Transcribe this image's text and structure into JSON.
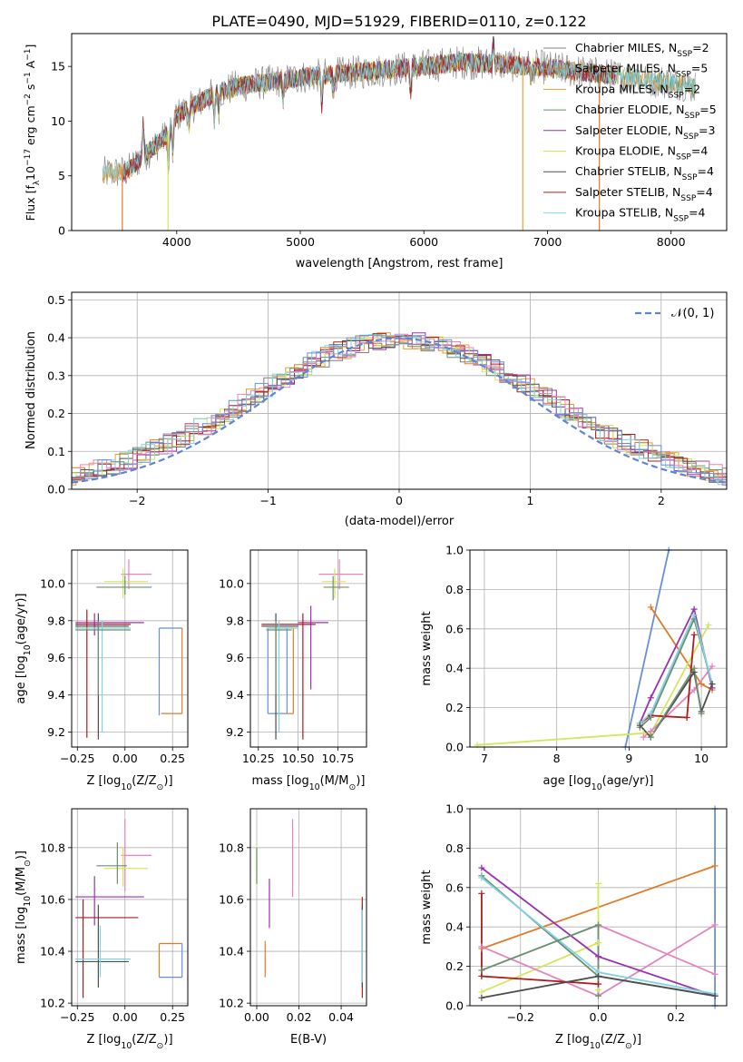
{
  "figure_title": "PLATE=0490, MJD=51929, FIBERID=0110, z=0.122",
  "colors": {
    "chabrier_miles": "#7f7f7f",
    "salpeter_miles": "#e07b2a",
    "kroupa_miles": "#e3a13a",
    "chabrier_elodie": "#6b8f71",
    "salpeter_elodie": "#9b30b0",
    "kroupa_elodie": "#d4e65a",
    "chabrier_stelib": "#4d4d4d",
    "salpeter_stelib": "#b01c1c",
    "kroupa_stelib": "#80d4e0",
    "normal": "#5b86d6",
    "extra_blue": "#6a8fd8",
    "extra_pink": "#e584c0",
    "grid": "#b0b0b0"
  },
  "chart_data": [
    {
      "id": "spectrum",
      "type": "line",
      "title": "PLATE=0490, MJD=51929, FIBERID=0110, z=0.122",
      "xlabel": "wavelength [Angstrom, rest frame]",
      "ylabel": "Flux [f",
      "ylabel_sub": "λ",
      "ylabel_rest": "10",
      "ylabel_exp": "−17",
      "ylabel_tail": " erg cm",
      "xlim": [
        3150,
        8450
      ],
      "ylim": [
        0,
        18
      ],
      "xticks": [
        4000,
        5000,
        6000,
        7000,
        8000
      ],
      "yticks": [
        0,
        5,
        10,
        15
      ],
      "grid": false,
      "legend_position": "right",
      "continuum": {
        "x": [
          3400,
          3600,
          3700,
          3800,
          3900,
          4000,
          4100,
          4200,
          4300,
          4500,
          4700,
          5000,
          5300,
          5600,
          6000,
          6300,
          6600,
          6900,
          7200,
          7500,
          7800,
          8100,
          8200
        ],
        "y": [
          5.2,
          5.4,
          6.5,
          7.5,
          8.5,
          10.5,
          11.2,
          11.8,
          12.5,
          13.2,
          13.5,
          14.0,
          14.3,
          14.6,
          15.0,
          15.4,
          15.2,
          15.0,
          14.6,
          14.2,
          13.8,
          13.4,
          13.1
        ]
      },
      "series": [
        {
          "label": "Chabrier MILES",
          "nssp": "2",
          "color": "#7f7f7f"
        },
        {
          "label": "Salpeter MILES",
          "nssp": "5",
          "color": "#e07b2a"
        },
        {
          "label": "Kroupa MILES",
          "nssp": "2",
          "color": "#e3a13a"
        },
        {
          "label": "Chabrier ELODIE",
          "nssp": "5",
          "color": "#6b8f71"
        },
        {
          "label": "Salpeter ELODIE",
          "nssp": "3",
          "color": "#9b30b0"
        },
        {
          "label": "Kroupa ELODIE",
          "nssp": "4",
          "color": "#d4e65a"
        },
        {
          "label": "Chabrier STELIB",
          "nssp": "4",
          "color": "#4d4d4d"
        },
        {
          "label": "Salpeter STELIB",
          "nssp": "4",
          "color": "#b01c1c"
        },
        {
          "label": "Kroupa STELIB",
          "nssp": "4",
          "color": "#80d4e0"
        }
      ],
      "legend_nssp_prefix": "N",
      "legend_nssp_sub": "SSP",
      "dropouts": [
        {
          "x": 3560,
          "color": "#e07b2a"
        },
        {
          "x": 3930,
          "color": "#d4e65a"
        },
        {
          "x": 6800,
          "color": "#e3a13a"
        },
        {
          "x": 7420,
          "color": "#e07b2a"
        }
      ]
    },
    {
      "id": "residuals",
      "type": "histogram",
      "xlabel": "(data-model)/error",
      "ylabel": "Normed distribution",
      "xlim": [
        -2.5,
        2.5
      ],
      "ylim": [
        0,
        0.52
      ],
      "xticks": [
        -2,
        -1,
        0,
        1,
        2
      ],
      "xticklabels": [
        "−2",
        "−1",
        "0",
        "1",
        "2"
      ],
      "yticks": [
        0.0,
        0.1,
        0.2,
        0.3,
        0.4,
        0.5
      ],
      "yticklabels": [
        "0.0",
        "0.1",
        "0.2",
        "0.3",
        "0.4",
        "0.5"
      ],
      "grid": true,
      "bin_width": 0.1,
      "normal_label": "𝒩(0, 1)",
      "legend_position": "top-right"
    },
    {
      "id": "age_vs_Z",
      "type": "scatter",
      "xlabel": "Z [log",
      "xlabel_sub": "10",
      "xlabel_rest": "(Z/Z",
      "xlabel_sun": "⊙",
      "xlabel_end": ")]",
      "ylabel": "age  [log",
      "ylabel_sub": "10",
      "ylabel_rest": "(age/yr)]",
      "xlim": [
        -0.28,
        0.33
      ],
      "ylim": [
        9.12,
        10.18
      ],
      "xticks": [
        -0.25,
        0.0,
        0.25
      ],
      "xticklabels": [
        "−0.25",
        "0.00",
        "0.25"
      ],
      "yticks": [
        9.2,
        9.4,
        9.6,
        9.8,
        10.0
      ],
      "yticklabels": [
        "9.2",
        "9.4",
        "9.6",
        "9.8",
        "10.0"
      ],
      "errorbars": [
        {
          "x": 0.02,
          "y": 10.05,
          "xlo": -0.02,
          "xhi": 0.14,
          "ylo": 9.97,
          "yhi": 10.13,
          "color": "#e584c0"
        },
        {
          "x": -0.01,
          "y": 10.01,
          "xlo": -0.11,
          "xhi": 0.12,
          "ylo": 9.92,
          "yhi": 10.08,
          "color": "#d4e65a"
        },
        {
          "x": 0.0,
          "y": 9.98,
          "xlo": -0.15,
          "xhi": 0.14,
          "ylo": 9.94,
          "yhi": 10.04,
          "color": "#6b8f71"
        },
        {
          "x": -0.16,
          "y": 9.79,
          "xlo": -0.26,
          "xhi": 0.1,
          "ylo": 9.72,
          "yhi": 9.84,
          "color": "#9b30b0"
        },
        {
          "x": -0.2,
          "y": 9.78,
          "xlo": -0.26,
          "xhi": 0.03,
          "ylo": 9.17,
          "yhi": 9.86,
          "color": "#b01c1c"
        },
        {
          "x": -0.14,
          "y": 9.77,
          "xlo": -0.26,
          "xhi": 0.02,
          "ylo": 9.16,
          "yhi": 9.84,
          "color": "#4d4d4d"
        },
        {
          "x": -0.12,
          "y": 9.76,
          "xlo": -0.26,
          "xhi": 0.03,
          "ylo": 9.2,
          "yhi": 9.8,
          "color": "#80d4e0"
        },
        {
          "x": -0.14,
          "y": 9.75,
          "xlo": -0.26,
          "xhi": 0.03,
          "ylo": 9.4,
          "yhi": 9.8,
          "color": "#6b8f71"
        }
      ],
      "boxes": [
        {
          "x0": 0.19,
          "x1": 0.3,
          "y0": 9.3,
          "y1": 9.76,
          "color": "#e07b2a",
          "open": "left-top"
        },
        {
          "x0": 0.18,
          "x1": 0.3,
          "y0": 9.29,
          "y1": 9.76,
          "color": "#6a8fd8",
          "open": "bottom-right"
        }
      ]
    },
    {
      "id": "age_vs_mass",
      "type": "scatter",
      "xlabel": "mass [log",
      "xlabel_sub": "10",
      "xlabel_rest": "(M/M",
      "xlabel_sun": "⊙",
      "xlabel_end": ")]",
      "xlim": [
        10.2,
        10.93
      ],
      "ylim": [
        9.12,
        10.18
      ],
      "xticks": [
        10.25,
        10.5,
        10.75
      ],
      "xticklabels": [
        "10.25",
        "10.50",
        "10.75"
      ],
      "yticks": [
        9.2,
        9.4,
        9.6,
        9.8,
        10.0
      ],
      "yticklabels": [
        "9.2",
        "9.4",
        "9.6",
        "9.8",
        "10.0"
      ],
      "errorbars": [
        {
          "x": 10.76,
          "y": 10.05,
          "xlo": 10.63,
          "xhi": 10.91,
          "ylo": 9.97,
          "yhi": 10.13,
          "color": "#e584c0"
        },
        {
          "x": 10.73,
          "y": 10.01,
          "xlo": 10.65,
          "xhi": 10.8,
          "ylo": 9.92,
          "yhi": 10.08,
          "color": "#d4e65a"
        },
        {
          "x": 10.72,
          "y": 9.98,
          "xlo": 10.66,
          "xhi": 10.82,
          "ylo": 9.91,
          "yhi": 10.04,
          "color": "#6b8f71"
        },
        {
          "x": 10.58,
          "y": 9.79,
          "xlo": 10.5,
          "xhi": 10.69,
          "ylo": 9.43,
          "yhi": 9.88,
          "color": "#9b30b0"
        },
        {
          "x": 10.53,
          "y": 9.78,
          "xlo": 10.27,
          "xhi": 10.61,
          "ylo": 9.16,
          "yhi": 9.84,
          "color": "#b01c1c"
        },
        {
          "x": 10.36,
          "y": 9.77,
          "xlo": 10.27,
          "xhi": 10.5,
          "ylo": 9.16,
          "yhi": 9.84,
          "color": "#4d4d4d"
        },
        {
          "x": 10.38,
          "y": 9.76,
          "xlo": 10.3,
          "xhi": 10.5,
          "ylo": 9.2,
          "yhi": 9.8,
          "color": "#80d4e0"
        },
        {
          "x": 10.36,
          "y": 9.75,
          "xlo": 10.3,
          "xhi": 10.46,
          "ylo": 9.4,
          "yhi": 9.8,
          "color": "#6b8f71"
        }
      ],
      "boxes": [
        {
          "x0": 10.31,
          "x1": 10.43,
          "y0": 9.3,
          "y1": 9.76,
          "color": "#6a8fd8",
          "open": "none"
        },
        {
          "x0": 10.43,
          "x1": 10.47,
          "y0": 9.3,
          "y1": 9.76,
          "color": "#e07b2a",
          "open": "left"
        }
      ]
    },
    {
      "id": "weight_vs_age",
      "type": "line",
      "xlabel": "age  [log",
      "xlabel_sub": "10",
      "xlabel_rest": "(age/yr)]",
      "ylabel": "mass weight",
      "xlim": [
        6.8,
        10.35
      ],
      "ylim": [
        0,
        1.0
      ],
      "xticks": [
        7,
        8,
        9,
        10
      ],
      "yticks": [
        0.0,
        0.2,
        0.4,
        0.6,
        0.8,
        1.0
      ],
      "yticklabels": [
        "0.0",
        "0.2",
        "0.4",
        "0.6",
        "0.8",
        "1.0"
      ],
      "grid": true,
      "series": [
        {
          "color": "#6a8fd8",
          "x": [
            8.95,
            9.55
          ],
          "y": [
            0.0,
            1.0
          ]
        },
        {
          "color": "#e07b2a",
          "x": [
            9.3,
            10.0,
            10.15
          ],
          "y": [
            0.71,
            0.32,
            0.29
          ]
        },
        {
          "color": "#d4e65a",
          "x": [
            6.9,
            9.2,
            9.3,
            10.1
          ],
          "y": [
            0.01,
            0.07,
            0.07,
            0.62
          ]
        },
        {
          "color": "#e584c0",
          "x": [
            9.2,
            9.3,
            9.9,
            10.15
          ],
          "y": [
            0.05,
            0.08,
            0.29,
            0.41
          ]
        },
        {
          "color": "#9b30b0",
          "x": [
            9.15,
            9.3,
            9.9,
            10.15
          ],
          "y": [
            0.12,
            0.25,
            0.7,
            0.3
          ]
        },
        {
          "color": "#b01c1c",
          "x": [
            9.15,
            9.3,
            9.8,
            9.9
          ],
          "y": [
            0.12,
            0.16,
            0.15,
            0.57
          ]
        },
        {
          "color": "#6b8f71",
          "x": [
            9.15,
            9.3,
            9.9,
            10.15
          ],
          "y": [
            0.1,
            0.15,
            0.65,
            0.32
          ]
        },
        {
          "color": "#80d4e0",
          "x": [
            9.15,
            9.3,
            9.9,
            10.15
          ],
          "y": [
            0.12,
            0.17,
            0.67,
            0.32
          ]
        },
        {
          "color": "#4d4d4d",
          "x": [
            9.15,
            9.3,
            9.9,
            10.0,
            10.15
          ],
          "y": [
            0.11,
            0.05,
            0.38,
            0.18,
            0.32
          ]
        },
        {
          "color": "#6b8f71",
          "x": [
            9.3,
            9.9,
            10.0
          ],
          "y": [
            0.05,
            0.4,
            0.17
          ]
        }
      ]
    },
    {
      "id": "mass_vs_Z",
      "type": "scatter",
      "xlabel": "Z [log",
      "xlabel_sub": "10",
      "xlabel_rest": "(Z/Z",
      "xlabel_sun": "⊙",
      "xlabel_end": ")]",
      "ylabel": "mass [log",
      "ylabel_sub": "10",
      "ylabel_rest": "(M/M",
      "ylabel_sun": "⊙",
      "ylabel_end": ")]",
      "xlim": [
        -0.28,
        0.33
      ],
      "ylim": [
        10.19,
        10.95
      ],
      "xticks": [
        -0.25,
        0.0,
        0.25
      ],
      "xticklabels": [
        "−0.25",
        "0.00",
        "0.25"
      ],
      "yticks": [
        10.2,
        10.4,
        10.6,
        10.8
      ],
      "yticklabels": [
        "10.2",
        "10.4",
        "10.6",
        "10.8"
      ],
      "errorbars": [
        {
          "x": 0.0,
          "y": 10.77,
          "xlo": -0.02,
          "xhi": 0.14,
          "ylo": 10.63,
          "yhi": 10.91,
          "color": "#e584c0"
        },
        {
          "x": -0.01,
          "y": 10.72,
          "xlo": -0.11,
          "xhi": 0.12,
          "ylo": 10.65,
          "yhi": 10.8,
          "color": "#d4e65a"
        },
        {
          "x": -0.04,
          "y": 10.73,
          "xlo": -0.15,
          "xhi": 0.01,
          "ylo": 10.66,
          "yhi": 10.82,
          "color": "#6b8f71"
        },
        {
          "x": -0.16,
          "y": 10.61,
          "xlo": -0.26,
          "xhi": 0.1,
          "ylo": 10.5,
          "yhi": 10.69,
          "color": "#9b30b0"
        },
        {
          "x": -0.22,
          "y": 10.53,
          "xlo": -0.26,
          "xhi": 0.07,
          "ylo": 10.22,
          "yhi": 10.6,
          "color": "#b01c1c"
        },
        {
          "x": -0.14,
          "y": 10.36,
          "xlo": -0.26,
          "xhi": 0.02,
          "ylo": 10.26,
          "yhi": 10.58,
          "color": "#4d4d4d"
        },
        {
          "x": -0.13,
          "y": 10.37,
          "xlo": -0.26,
          "xhi": 0.03,
          "ylo": 10.3,
          "yhi": 10.5,
          "color": "#80d4e0"
        }
      ],
      "boxes": [
        {
          "x0": 0.18,
          "x1": 0.3,
          "y0": 10.3,
          "y1": 10.43,
          "color": "#e07b2a",
          "open": "right-bottom"
        },
        {
          "x0": 0.18,
          "x1": 0.3,
          "y0": 10.3,
          "y1": 10.43,
          "color": "#6a8fd8",
          "open": "left-top"
        }
      ]
    },
    {
      "id": "mass_vs_ebv",
      "type": "scatter",
      "xlabel": "E(B-V)",
      "xlim": [
        -0.003,
        0.052
      ],
      "ylim": [
        10.19,
        10.95
      ],
      "xticks": [
        0.0,
        0.02,
        0.04
      ],
      "xticklabels": [
        "0.00",
        "0.02",
        "0.04"
      ],
      "yticks": [
        10.2,
        10.4,
        10.6,
        10.8
      ],
      "yticklabels": [
        "10.2",
        "10.4",
        "10.6",
        "10.8"
      ],
      "errorbars": [
        {
          "x": 0.0,
          "y": 10.73,
          "xlo": 0.0,
          "xhi": 0.0,
          "ylo": 10.65,
          "yhi": 10.81,
          "color": "#d4e65a"
        },
        {
          "x": 0.0,
          "y": 10.72,
          "xlo": 0.0,
          "xhi": 0.0,
          "ylo": 10.66,
          "yhi": 10.8,
          "color": "#6b8f71"
        },
        {
          "x": 0.006,
          "y": 10.6,
          "xlo": 0.006,
          "xhi": 0.006,
          "ylo": 10.49,
          "yhi": 10.68,
          "color": "#9b30b0"
        },
        {
          "x": 0.004,
          "y": 10.37,
          "xlo": 0.004,
          "xhi": 0.004,
          "ylo": 10.3,
          "yhi": 10.44,
          "color": "#e07b2a"
        },
        {
          "x": 0.017,
          "y": 10.76,
          "xlo": 0.017,
          "xhi": 0.017,
          "ylo": 10.61,
          "yhi": 10.91,
          "color": "#e584c0"
        },
        {
          "x": 0.05,
          "y": 10.53,
          "xlo": 0.05,
          "xhi": 0.05,
          "ylo": 10.22,
          "yhi": 10.61,
          "color": "#b01c1c"
        },
        {
          "x": 0.05,
          "y": 10.4,
          "xlo": 0.05,
          "xhi": 0.05,
          "ylo": 10.26,
          "yhi": 10.58,
          "color": "#4d4d4d"
        },
        {
          "x": 0.05,
          "y": 10.42,
          "xlo": 0.05,
          "xhi": 0.05,
          "ylo": 10.28,
          "yhi": 10.56,
          "color": "#80d4e0"
        }
      ],
      "boxes": []
    },
    {
      "id": "weight_vs_Z",
      "type": "line",
      "xlabel": "Z [log",
      "xlabel_sub": "10",
      "xlabel_rest": "(Z/Z",
      "xlabel_sun": "⊙",
      "xlabel_end": ")]",
      "ylabel": "mass weight",
      "xlim": [
        -0.33,
        0.33
      ],
      "ylim": [
        0,
        1.0
      ],
      "xticks": [
        -0.2,
        0.0,
        0.2
      ],
      "xticklabels": [
        "−0.2",
        "0.0",
        "0.2"
      ],
      "yticks": [
        0.0,
        0.2,
        0.4,
        0.6,
        0.8,
        1.0
      ],
      "yticklabels": [
        "0.0",
        "0.2",
        "0.4",
        "0.6",
        "0.8",
        "1.0"
      ],
      "grid": true,
      "series": [
        {
          "color": "#6a8fd8",
          "x": [
            0.3,
            0.3
          ],
          "y": [
            0.0,
            1.0
          ]
        },
        {
          "color": "#e07b2a",
          "x": [
            -0.3,
            0.3
          ],
          "y": [
            0.29,
            0.71
          ]
        },
        {
          "color": "#d4e65a",
          "x": [
            -0.3,
            0.0,
            0.0,
            0.0
          ],
          "y": [
            0.07,
            0.32,
            0.62,
            0.08
          ]
        },
        {
          "color": "#e584c0",
          "x": [
            -0.3,
            0.0,
            0.3
          ],
          "y": [
            0.3,
            0.05,
            0.41
          ]
        },
        {
          "color": "#e584c0",
          "x": [
            0.0,
            0.3
          ],
          "y": [
            0.41,
            0.16
          ]
        },
        {
          "color": "#9b30b0",
          "x": [
            -0.3,
            0.0,
            0.3
          ],
          "y": [
            0.7,
            0.25,
            0.05
          ]
        },
        {
          "color": "#b01c1c",
          "x": [
            -0.3,
            -0.3,
            0.0
          ],
          "y": [
            0.57,
            0.15,
            0.11
          ]
        },
        {
          "color": "#6b8f71",
          "x": [
            -0.3,
            0.0,
            0.3
          ],
          "y": [
            0.66,
            0.15,
            0.05
          ]
        },
        {
          "color": "#80d4e0",
          "x": [
            -0.3,
            0.0,
            0.3
          ],
          "y": [
            0.65,
            0.17,
            0.06
          ]
        },
        {
          "color": "#6b8f71",
          "x": [
            -0.3,
            0.0,
            0.0
          ],
          "y": [
            0.18,
            0.41,
            0.05
          ]
        },
        {
          "color": "#4d4d4d",
          "x": [
            -0.3,
            0.0,
            0.3
          ],
          "y": [
            0.04,
            0.15,
            0.05
          ]
        }
      ]
    }
  ]
}
